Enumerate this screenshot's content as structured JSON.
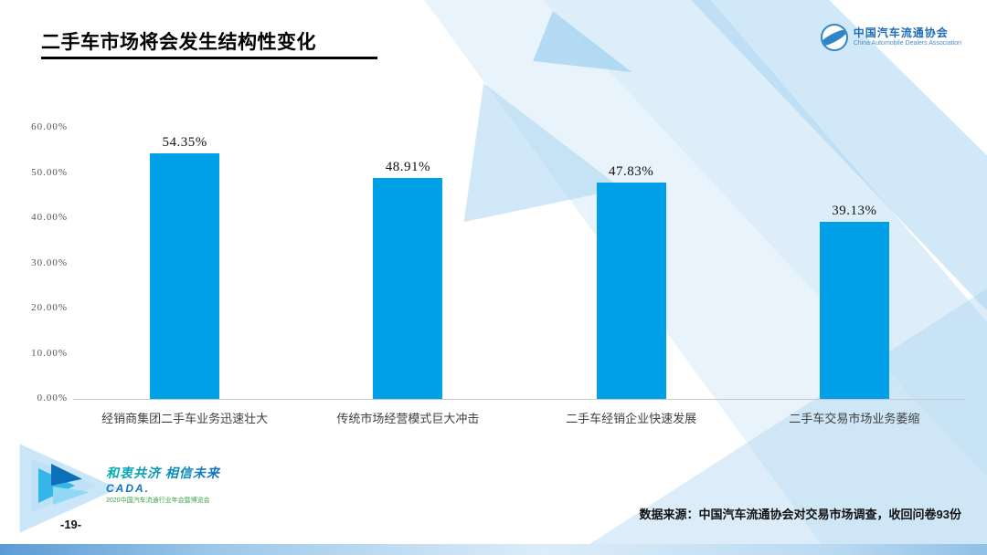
{
  "slide": {
    "title": "二手车市场将会发生结构性变化",
    "page_number": "-19-",
    "source_note": "数据来源：中国汽车流通协会对交易市场调查，收回问卷93份"
  },
  "header_logo": {
    "org_cn": "中国汽车流通协会",
    "org_en": "China Automobile Dealers Association"
  },
  "footer_logo": {
    "slogan": "和衷共济 相信未来",
    "brand": "CADA.",
    "event": "2020中国汽车流通行业年会暨博览会"
  },
  "chart_data": {
    "type": "bar",
    "title": "二手车市场将会发生结构性变化",
    "categories": [
      "经销商集团二手车业务迅速壮大",
      "传统市场经营模式巨大冲击",
      "二手车经销企业快速发展",
      "二手车交易市场业务萎缩"
    ],
    "values": [
      54.35,
      48.91,
      47.83,
      39.13
    ],
    "value_labels": [
      "54.35%",
      "48.91%",
      "47.83%",
      "39.13%"
    ],
    "ylim": [
      0,
      60
    ],
    "yticks": [
      "60.00%",
      "50.00%",
      "40.00%",
      "30.00%",
      "20.00%",
      "10.00%",
      "0.00%"
    ],
    "bar_color": "#00A0E9",
    "grid": false,
    "legend": false
  }
}
